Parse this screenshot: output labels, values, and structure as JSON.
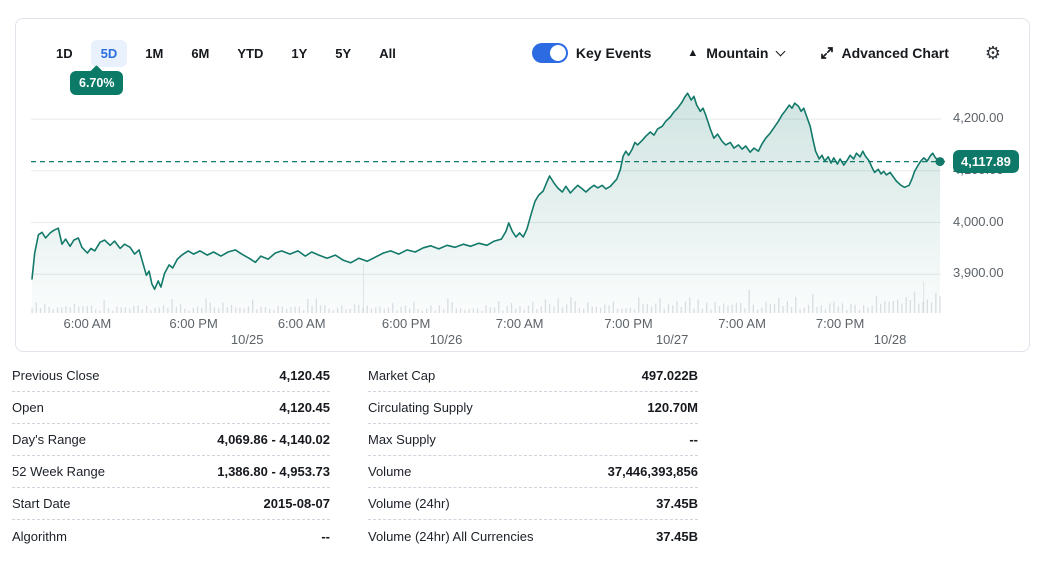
{
  "colors": {
    "accent_teal": "#0e7968",
    "badge_green": "#0b7a67",
    "selected_range_blue": "#2a6ee0",
    "selected_range_bg": "#e9f1fc",
    "toggle_blue": "#2d6be3",
    "axis_text": "#5c6369",
    "grid_line": "#e7eaee"
  },
  "toolbar": {
    "ranges": [
      {
        "id": "1d",
        "label": "1D",
        "selected": false
      },
      {
        "id": "5d",
        "label": "5D",
        "selected": true
      },
      {
        "id": "1m",
        "label": "1M",
        "selected": false
      },
      {
        "id": "6m",
        "label": "6M",
        "selected": false
      },
      {
        "id": "ytd",
        "label": "YTD",
        "selected": false
      },
      {
        "id": "1y",
        "label": "1Y",
        "selected": false
      },
      {
        "id": "5y",
        "label": "5Y",
        "selected": false
      },
      {
        "id": "all",
        "label": "All",
        "selected": false
      }
    ],
    "change_badge": "6.70%",
    "key_events_label": "Key Events",
    "key_events_on": true,
    "chart_type": {
      "label": "Mountain"
    },
    "advanced_chart_label": "Advanced Chart"
  },
  "chart_data": {
    "type": "area",
    "current_price_label": "4,117.89",
    "current_price": 4117.89,
    "ylim": [
      3825,
      4264
    ],
    "y_ticks": [
      {
        "value": 4200,
        "label": "4,200.00"
      },
      {
        "value": 4100,
        "label": "4,100.00"
      },
      {
        "value": 4000,
        "label": "4,000.00"
      },
      {
        "value": 3900,
        "label": "3,900.00"
      }
    ],
    "x_ticks": [
      {
        "t": 0.061,
        "label": "6:00 AM"
      },
      {
        "t": 0.178,
        "label": "6:00 PM"
      },
      {
        "t": 0.297,
        "label": "6:00 AM"
      },
      {
        "t": 0.412,
        "label": "6:00 PM"
      },
      {
        "t": 0.537,
        "label": "7:00 AM"
      },
      {
        "t": 0.657,
        "label": "7:00 PM"
      },
      {
        "t": 0.782,
        "label": "7:00 AM"
      },
      {
        "t": 0.89,
        "label": "7:00 PM"
      }
    ],
    "date_ticks": [
      {
        "t": 0.237,
        "label": "10/25"
      },
      {
        "t": 0.456,
        "label": "10/26"
      },
      {
        "t": 0.705,
        "label": "10/27"
      },
      {
        "t": 0.945,
        "label": "10/28"
      }
    ],
    "day_separators": [
      {
        "t": 0.365,
        "y0": 178
      },
      {
        "t": 0.982,
        "y0": 196
      }
    ],
    "line_color": "#13796a",
    "fill_top": "rgba(19,121,106,0.20)",
    "fill_bottom": "rgba(19,121,106,0.02)",
    "grid": true,
    "legend": "none",
    "volume_bars": {
      "count": 215,
      "seed": 11,
      "color": "#c7ccd4",
      "max_height": 28
    },
    "series": [
      {
        "name": "price",
        "points": [
          [
            0,
            3891
          ],
          [
            0.003,
            3941
          ],
          [
            0.007,
            3976
          ],
          [
            0.011,
            3981
          ],
          [
            0.015,
            3970
          ],
          [
            0.02,
            3980
          ],
          [
            0.024,
            3985
          ],
          [
            0.029,
            3989
          ],
          [
            0.033,
            3958
          ],
          [
            0.037,
            3968
          ],
          [
            0.042,
            3954
          ],
          [
            0.046,
            3966
          ],
          [
            0.051,
            3970
          ],
          [
            0.055,
            3952
          ],
          [
            0.061,
            3941
          ],
          [
            0.065,
            3950
          ],
          [
            0.069,
            3945
          ],
          [
            0.075,
            3962
          ],
          [
            0.08,
            3966
          ],
          [
            0.086,
            3956
          ],
          [
            0.091,
            3964
          ],
          [
            0.097,
            3950
          ],
          [
            0.102,
            3958
          ],
          [
            0.108,
            3952
          ],
          [
            0.113,
            3939
          ],
          [
            0.118,
            3947
          ],
          [
            0.122,
            3922
          ],
          [
            0.126,
            3898
          ],
          [
            0.129,
            3906
          ],
          [
            0.132,
            3881
          ],
          [
            0.135,
            3871
          ],
          [
            0.139,
            3887
          ],
          [
            0.142,
            3875
          ],
          [
            0.146,
            3902
          ],
          [
            0.151,
            3918
          ],
          [
            0.155,
            3912
          ],
          [
            0.16,
            3929
          ],
          [
            0.165,
            3937
          ],
          [
            0.172,
            3945
          ],
          [
            0.178,
            3939
          ],
          [
            0.185,
            3945
          ],
          [
            0.193,
            3937
          ],
          [
            0.2,
            3943
          ],
          [
            0.208,
            3935
          ],
          [
            0.216,
            3943
          ],
          [
            0.224,
            3947
          ],
          [
            0.231,
            3939
          ],
          [
            0.239,
            3931
          ],
          [
            0.246,
            3923
          ],
          [
            0.252,
            3935
          ],
          [
            0.26,
            3929
          ],
          [
            0.268,
            3941
          ],
          [
            0.275,
            3945
          ],
          [
            0.284,
            3939
          ],
          [
            0.293,
            3945
          ],
          [
            0.301,
            3935
          ],
          [
            0.308,
            3943
          ],
          [
            0.316,
            3937
          ],
          [
            0.325,
            3931
          ],
          [
            0.334,
            3937
          ],
          [
            0.343,
            3927
          ],
          [
            0.351,
            3922
          ],
          [
            0.36,
            3931
          ],
          [
            0.369,
            3925
          ],
          [
            0.378,
            3933
          ],
          [
            0.387,
            3941
          ],
          [
            0.395,
            3945
          ],
          [
            0.404,
            3939
          ],
          [
            0.413,
            3947
          ],
          [
            0.422,
            3943
          ],
          [
            0.431,
            3951
          ],
          [
            0.439,
            3955
          ],
          [
            0.448,
            3949
          ],
          [
            0.457,
            3956
          ],
          [
            0.466,
            3952
          ],
          [
            0.475,
            3958
          ],
          [
            0.483,
            3954
          ],
          [
            0.492,
            3960
          ],
          [
            0.501,
            3956
          ],
          [
            0.509,
            3964
          ],
          [
            0.517,
            3968
          ],
          [
            0.522,
            3983
          ],
          [
            0.525,
            3999
          ],
          [
            0.529,
            3983
          ],
          [
            0.533,
            3972
          ],
          [
            0.537,
            3980
          ],
          [
            0.541,
            3972
          ],
          [
            0.545,
            3987
          ],
          [
            0.55,
            4018
          ],
          [
            0.554,
            4041
          ],
          [
            0.558,
            4053
          ],
          [
            0.563,
            4061
          ],
          [
            0.567,
            4078
          ],
          [
            0.57,
            4090
          ],
          [
            0.575,
            4076
          ],
          [
            0.579,
            4067
          ],
          [
            0.584,
            4059
          ],
          [
            0.588,
            4070
          ],
          [
            0.593,
            4057
          ],
          [
            0.597,
            4065
          ],
          [
            0.601,
            4072
          ],
          [
            0.606,
            4065
          ],
          [
            0.61,
            4059
          ],
          [
            0.615,
            4067
          ],
          [
            0.619,
            4072
          ],
          [
            0.623,
            4067
          ],
          [
            0.628,
            4072
          ],
          [
            0.632,
            4065
          ],
          [
            0.637,
            4070
          ],
          [
            0.641,
            4078
          ],
          [
            0.644,
            4084
          ],
          [
            0.648,
            4103
          ],
          [
            0.651,
            4128
          ],
          [
            0.654,
            4138
          ],
          [
            0.657,
            4130
          ],
          [
            0.661,
            4142
          ],
          [
            0.664,
            4155
          ],
          [
            0.667,
            4150
          ],
          [
            0.672,
            4159
          ],
          [
            0.676,
            4167
          ],
          [
            0.681,
            4175
          ],
          [
            0.685,
            4169
          ],
          [
            0.689,
            4181
          ],
          [
            0.694,
            4186
          ],
          [
            0.698,
            4196
          ],
          [
            0.703,
            4204
          ],
          [
            0.707,
            4214
          ],
          [
            0.711,
            4221
          ],
          [
            0.716,
            4233
          ],
          [
            0.719,
            4243
          ],
          [
            0.722,
            4250
          ],
          [
            0.726,
            4237
          ],
          [
            0.729,
            4244
          ],
          [
            0.732,
            4227
          ],
          [
            0.736,
            4215
          ],
          [
            0.739,
            4221
          ],
          [
            0.742,
            4208
          ],
          [
            0.747,
            4181
          ],
          [
            0.751,
            4163
          ],
          [
            0.755,
            4171
          ],
          [
            0.76,
            4157
          ],
          [
            0.764,
            4150
          ],
          [
            0.769,
            4155
          ],
          [
            0.773,
            4144
          ],
          [
            0.778,
            4150
          ],
          [
            0.782,
            4142
          ],
          [
            0.786,
            4148
          ],
          [
            0.791,
            4136
          ],
          [
            0.795,
            4144
          ],
          [
            0.8,
            4138
          ],
          [
            0.804,
            4152
          ],
          [
            0.808,
            4163
          ],
          [
            0.813,
            4173
          ],
          [
            0.817,
            4183
          ],
          [
            0.822,
            4196
          ],
          [
            0.826,
            4208
          ],
          [
            0.83,
            4217
          ],
          [
            0.834,
            4227
          ],
          [
            0.837,
            4221
          ],
          [
            0.84,
            4231
          ],
          [
            0.844,
            4225
          ],
          [
            0.847,
            4215
          ],
          [
            0.85,
            4221
          ],
          [
            0.853,
            4206
          ],
          [
            0.857,
            4186
          ],
          [
            0.86,
            4161
          ],
          [
            0.863,
            4138
          ],
          [
            0.867,
            4123
          ],
          [
            0.87,
            4130
          ],
          [
            0.873,
            4119
          ],
          [
            0.877,
            4127
          ],
          [
            0.88,
            4115
          ],
          [
            0.883,
            4125
          ],
          [
            0.887,
            4113
          ],
          [
            0.89,
            4123
          ],
          [
            0.894,
            4111
          ],
          [
            0.898,
            4121
          ],
          [
            0.901,
            4130
          ],
          [
            0.905,
            4123
          ],
          [
            0.908,
            4134
          ],
          [
            0.912,
            4127
          ],
          [
            0.915,
            4138
          ],
          [
            0.918,
            4128
          ],
          [
            0.922,
            4119
          ],
          [
            0.925,
            4107
          ],
          [
            0.928,
            4097
          ],
          [
            0.932,
            4103
          ],
          [
            0.935,
            4094
          ],
          [
            0.938,
            4099
          ],
          [
            0.941,
            4092
          ],
          [
            0.945,
            4097
          ],
          [
            0.952,
            4080
          ],
          [
            0.957,
            4072
          ],
          [
            0.961,
            4068
          ],
          [
            0.966,
            4072
          ],
          [
            0.969,
            4084
          ],
          [
            0.972,
            4099
          ],
          [
            0.976,
            4111
          ],
          [
            0.979,
            4119
          ],
          [
            0.982,
            4125
          ],
          [
            0.986,
            4119
          ],
          [
            0.989,
            4128
          ],
          [
            0.992,
            4134
          ],
          [
            0.995,
            4125
          ],
          [
            1,
            4117.89
          ]
        ]
      }
    ]
  },
  "stats": {
    "left": [
      {
        "label": "Previous Close",
        "value": "4,120.45"
      },
      {
        "label": "Open",
        "value": "4,120.45"
      },
      {
        "label": "Day's Range",
        "value": "4,069.86 - 4,140.02"
      },
      {
        "label": "52 Week Range",
        "value": "1,386.80 - 4,953.73"
      },
      {
        "label": "Start Date",
        "value": "2015-08-07"
      },
      {
        "label": "Algorithm",
        "value": "--"
      }
    ],
    "right": [
      {
        "label": "Market Cap",
        "value": "497.022B"
      },
      {
        "label": "Circulating Supply",
        "value": "120.70M"
      },
      {
        "label": "Max Supply",
        "value": "--"
      },
      {
        "label": "Volume",
        "value": "37,446,393,856"
      },
      {
        "label": "Volume (24hr)",
        "value": "37.45B"
      },
      {
        "label": "Volume (24hr) All Currencies",
        "value": "37.45B"
      }
    ]
  }
}
